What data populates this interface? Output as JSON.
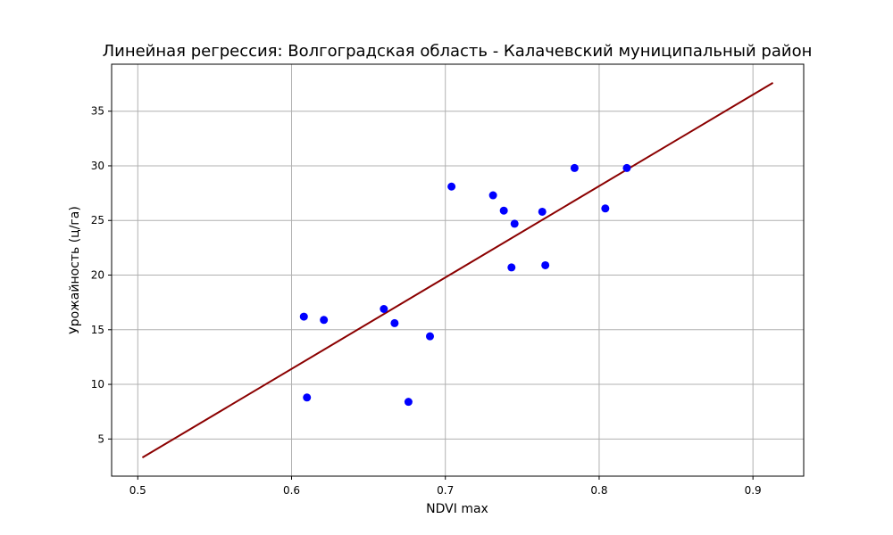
{
  "chart_data": {
    "type": "scatter",
    "title": "Линейная регрессия: Волгоградская область - Калачевский муниципальный район",
    "xlabel": "NDVI max",
    "ylabel": "Урожайность (ц/га)",
    "xlim": [
      0.483,
      0.933
    ],
    "ylim": [
      1.6,
      39.3
    ],
    "x_ticks": [
      0.5,
      0.6,
      0.7,
      0.8,
      0.9
    ],
    "x_tick_labels": [
      "0.5",
      "0.6",
      "0.7",
      "0.8",
      "0.9"
    ],
    "y_ticks": [
      5,
      10,
      15,
      20,
      25,
      30,
      35
    ],
    "y_tick_labels": [
      "5",
      "10",
      "15",
      "20",
      "25",
      "30",
      "35"
    ],
    "grid": true,
    "series": [
      {
        "kind": "points",
        "color": "#0000ff",
        "x": [
          0.608,
          0.61,
          0.621,
          0.66,
          0.667,
          0.676,
          0.69,
          0.704,
          0.731,
          0.738,
          0.743,
          0.745,
          0.763,
          0.765,
          0.784,
          0.804,
          0.818
        ],
        "y": [
          16.2,
          8.8,
          15.9,
          16.9,
          15.6,
          8.4,
          14.4,
          28.1,
          27.3,
          25.9,
          20.7,
          24.7,
          25.8,
          20.9,
          29.8,
          26.1,
          29.8
        ]
      },
      {
        "kind": "regression-line",
        "color": "#8b0000",
        "x": [
          0.503,
          0.913
        ],
        "y": [
          3.3,
          37.6
        ]
      }
    ]
  }
}
